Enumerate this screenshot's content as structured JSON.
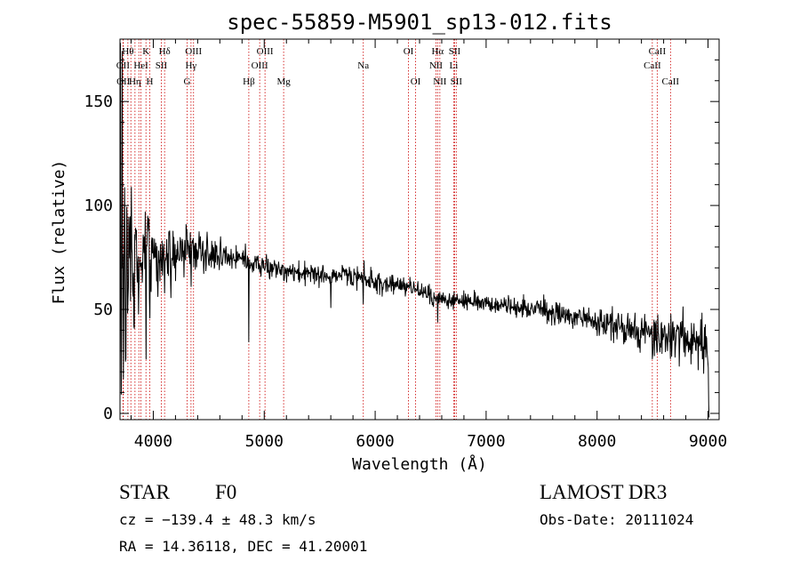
{
  "chart_data": {
    "type": "line",
    "title": "spec-55859-M5901_sp13-012.fits",
    "xlabel": "Wavelength (Å)",
    "ylabel": "Flux (relative)",
    "xlim": [
      3700,
      9100
    ],
    "ylim": [
      -3,
      180
    ],
    "x_ticks": [
      4000,
      5000,
      6000,
      7000,
      8000,
      9000
    ],
    "y_ticks": [
      0,
      50,
      100,
      150
    ],
    "x_tick_labels": [
      "4000",
      "5000",
      "6000",
      "7000",
      "8000",
      "9000"
    ],
    "y_tick_labels": [
      "0",
      "50",
      "100",
      "150"
    ],
    "x_minor_step": 200,
    "y_minor_step": 10,
    "grid": false,
    "series": [
      {
        "name": "flux",
        "continuum": [
          [
            3700,
            70
          ],
          [
            3800,
            75
          ],
          [
            3900,
            76
          ],
          [
            4000,
            75
          ],
          [
            4200,
            76
          ],
          [
            4400,
            77
          ],
          [
            4600,
            76
          ],
          [
            4800,
            74
          ],
          [
            5000,
            71
          ],
          [
            5200,
            68
          ],
          [
            5500,
            67
          ],
          [
            5800,
            66
          ],
          [
            6000,
            63
          ],
          [
            6300,
            61
          ],
          [
            6600,
            55
          ],
          [
            7000,
            53
          ],
          [
            7500,
            50
          ],
          [
            8000,
            44
          ],
          [
            8500,
            38
          ],
          [
            8800,
            36
          ],
          [
            9000,
            32
          ]
        ],
        "noise": [
          [
            3700,
            30
          ],
          [
            3800,
            16
          ],
          [
            3900,
            12
          ],
          [
            4000,
            10
          ],
          [
            4200,
            7
          ],
          [
            4500,
            4
          ],
          [
            5000,
            2.5
          ],
          [
            6000,
            2.5
          ],
          [
            7000,
            2
          ],
          [
            8000,
            3
          ],
          [
            8500,
            5
          ],
          [
            9000,
            6
          ]
        ],
        "spikes": [
          [
            3705,
            120
          ],
          [
            3712,
            -60
          ],
          [
            3720,
            140
          ],
          [
            3730,
            -70
          ],
          [
            3740,
            80
          ],
          [
            3750,
            -50
          ],
          [
            3760,
            40
          ],
          [
            3770,
            -45
          ],
          [
            3800,
            30
          ],
          [
            3825,
            -35
          ],
          [
            3850,
            20
          ],
          [
            3890,
            -25
          ],
          [
            3935,
            -40
          ],
          [
            3950,
            22
          ],
          [
            3968,
            -35
          ],
          [
            4102,
            -15
          ],
          [
            4340,
            -18
          ],
          [
            4861,
            -40
          ],
          [
            5175,
            -6
          ],
          [
            5600,
            -16
          ],
          [
            5892,
            -8
          ],
          [
            5900,
            9
          ],
          [
            6563,
            -14
          ],
          [
            8498,
            -6
          ],
          [
            8542,
            -8
          ],
          [
            8662,
            -7
          ]
        ],
        "spike_width": 2.5,
        "end_drop": [
          [
            8990,
            32
          ],
          [
            9000,
            20
          ],
          [
            9010,
            -1
          ]
        ],
        "samples": 1400,
        "seed": 55859
      }
    ],
    "lines": [
      {
        "wave": 3727,
        "label": "OII",
        "row": 2
      },
      {
        "wave": 3730,
        "label": "OII",
        "row": 3
      },
      {
        "wave": 3771,
        "label": "Hθ",
        "row": 1
      },
      {
        "wave": 3798,
        "label": "",
        "row": 0
      },
      {
        "wave": 3835,
        "label": "Hη",
        "row": 3
      },
      {
        "wave": 3870,
        "label": "",
        "row": 0
      },
      {
        "wave": 3889,
        "label": "HeI",
        "row": 2
      },
      {
        "wave": 3934,
        "label": "K",
        "row": 1
      },
      {
        "wave": 3968,
        "label": "H",
        "row": 3
      },
      {
        "wave": 4072,
        "label": "SII",
        "row": 2
      },
      {
        "wave": 4102,
        "label": "Hδ",
        "row": 1
      },
      {
        "wave": 4305,
        "label": "G",
        "row": 3
      },
      {
        "wave": 4340,
        "label": "Hγ",
        "row": 2
      },
      {
        "wave": 4363,
        "label": "OIII",
        "row": 1
      },
      {
        "wave": 4861,
        "label": "Hβ",
        "row": 3
      },
      {
        "wave": 4959,
        "label": "OIII",
        "row": 2
      },
      {
        "wave": 5007,
        "label": "OIII",
        "row": 1
      },
      {
        "wave": 5175,
        "label": "Mg",
        "row": 3
      },
      {
        "wave": 5893,
        "label": "Na",
        "row": 2
      },
      {
        "wave": 6300,
        "label": "OI",
        "row": 1
      },
      {
        "wave": 6364,
        "label": "OI",
        "row": 3
      },
      {
        "wave": 6548,
        "label": "NII",
        "row": 2
      },
      {
        "wave": 6563,
        "label": "Hα",
        "row": 1
      },
      {
        "wave": 6583,
        "label": "NII",
        "row": 3
      },
      {
        "wave": 6708,
        "label": "Li",
        "row": 2
      },
      {
        "wave": 6716,
        "label": "SII",
        "row": 1
      },
      {
        "wave": 6731,
        "label": "SII",
        "row": 3
      },
      {
        "wave": 8498,
        "label": "CaII",
        "row": 2
      },
      {
        "wave": 8542,
        "label": "CaII",
        "row": 1
      },
      {
        "wave": 8662,
        "label": "CaII",
        "row": 3
      }
    ]
  },
  "info": {
    "class": "STAR",
    "subclass": "F0",
    "survey": "LAMOST DR3",
    "cz": "cz = −139.4 ± 48.3 km/s",
    "obs_date": "Obs-Date: 20111024",
    "coords": "RA =  14.36118, DEC =  41.20001"
  },
  "colors": {
    "axis": "#000000",
    "spectrum": "#000000",
    "line_marker": "#cc0000",
    "background": "#ffffff"
  }
}
